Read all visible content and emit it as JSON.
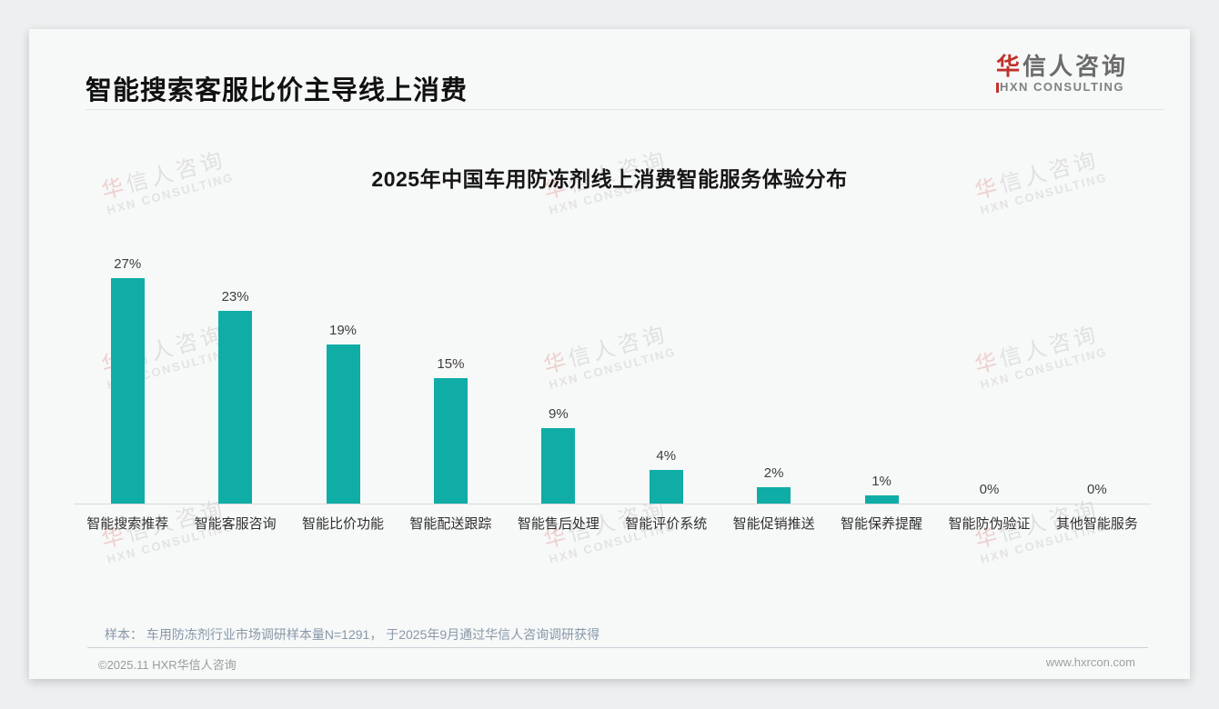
{
  "header": {
    "title": "智能搜索客服比价主导线上消费",
    "logo": {
      "cn_first": "华",
      "cn_rest": "信人咨询",
      "en": "HXN CONSULTING",
      "accent_color": "#c0322b"
    }
  },
  "chart_data": {
    "type": "bar",
    "title": "2025年中国车用防冻剂线上消费智能服务体验分布",
    "categories": [
      "智能搜索推荐",
      "智能客服咨询",
      "智能比价功能",
      "智能配送跟踪",
      "智能售后处理",
      "智能评价系统",
      "智能促销推送",
      "智能保养提醒",
      "智能防伪验证",
      "其他智能服务"
    ],
    "values": [
      27,
      23,
      19,
      15,
      9,
      4,
      2,
      1,
      0,
      0
    ],
    "unit": "%",
    "bar_color": "#0fada6",
    "ylim": [
      0,
      30
    ],
    "grid": false,
    "legend": false,
    "value_labels_shown": true
  },
  "footnote": {
    "text": "样本： 车用防冻剂行业市场调研样本量N=1291， 于2025年9月通过华信人咨询调研获得"
  },
  "footer": {
    "copyright": "©2025.11 HXR华信人咨询",
    "website": "www.hxrcon.com"
  },
  "watermark": {
    "line1_first": "华",
    "line1_rest": "信人咨询",
    "line2": "HXN CONSULTING"
  }
}
